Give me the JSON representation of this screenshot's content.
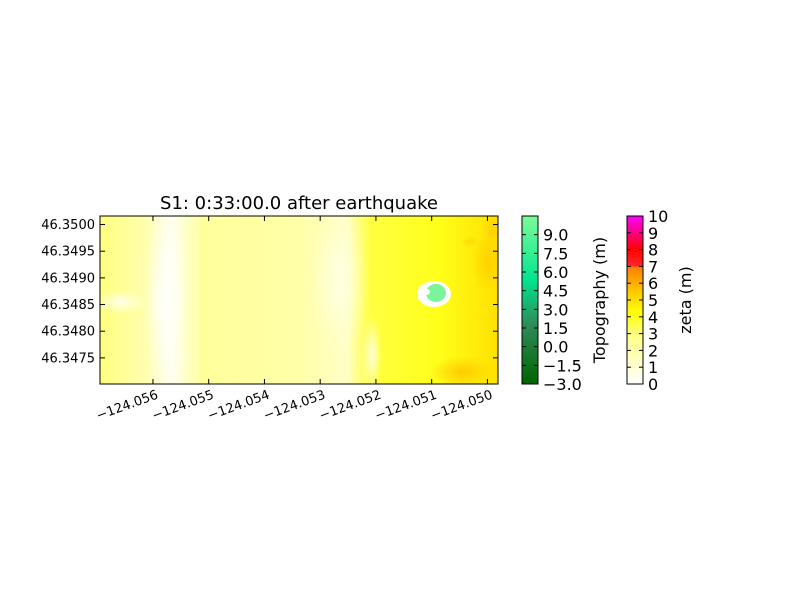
{
  "chart_data": {
    "type": "heatmap",
    "title": "S1: 0:33:00.0 after earthquake",
    "xlabel": "",
    "ylabel": "",
    "x_ticks": [
      "−124.056",
      "−124.055",
      "−124.054",
      "−124.053",
      "−124.052",
      "−124.051",
      "−124.050"
    ],
    "x_tick_values": [
      -124.056,
      -124.055,
      -124.054,
      -124.053,
      -124.052,
      -124.051,
      -124.05
    ],
    "xlim": [
      -124.05695,
      -124.04981
    ],
    "y_ticks": [
      "46.3475",
      "46.3480",
      "46.3485",
      "46.3490",
      "46.3495",
      "46.3500"
    ],
    "y_tick_values": [
      46.3475,
      46.348,
      46.3485,
      46.349,
      46.3495,
      46.35
    ],
    "ylim": [
      46.34701,
      46.35016
    ],
    "colorbars": [
      {
        "label": "Topography (m)",
        "ticks": [
          "−3.0",
          "−1.5",
          "0.0",
          "1.5",
          "3.0",
          "4.5",
          "6.0",
          "7.5",
          "9.0"
        ],
        "tick_values": [
          -3.0,
          -1.5,
          0.0,
          1.5,
          3.0,
          4.5,
          6.0,
          7.5,
          9.0
        ],
        "range": [
          -3.0,
          10.5
        ],
        "colors": [
          "#006400",
          "#2e8b57",
          "#00e58f",
          "#7cfc98"
        ]
      },
      {
        "label": "zeta (m)",
        "ticks": [
          "0",
          "1",
          "2",
          "3",
          "4",
          "5",
          "6",
          "7",
          "8",
          "9",
          "10"
        ],
        "tick_values": [
          0,
          1,
          2,
          3,
          4,
          5,
          6,
          7,
          8,
          9,
          10
        ],
        "range": [
          0,
          10
        ],
        "stops": [
          {
            "v": 0,
            "c": "#ffffff"
          },
          {
            "v": 3,
            "c": "#ffff80"
          },
          {
            "v": 4.3,
            "c": "#ffff00"
          },
          {
            "v": 5.5,
            "c": "#ffc800"
          },
          {
            "v": 7,
            "c": "#ff7d00"
          },
          {
            "v": 7.001,
            "c": "#ff2a2a"
          },
          {
            "v": 8,
            "c": "#ff0000"
          },
          {
            "v": 10,
            "c": "#ff00ff"
          }
        ]
      }
    ],
    "field_description_colors": {
      "low_water": "#ffffe6",
      "mid_water": "#ffff99",
      "high_water": "#ffd400",
      "land": "#7cf59a"
    }
  }
}
